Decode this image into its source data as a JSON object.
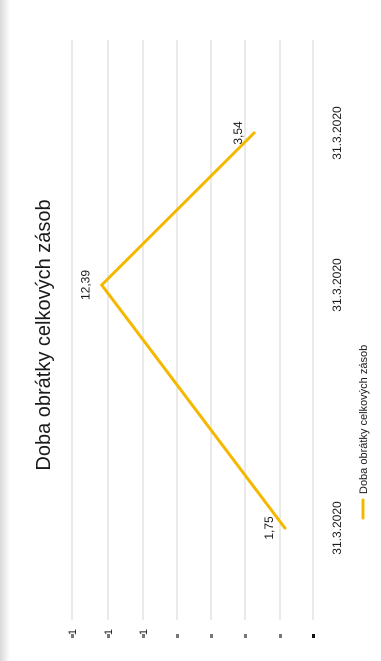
{
  "chart_data": {
    "type": "line",
    "title": "Doba obrátky celkových zásob",
    "categories": [
      "31.3.2020",
      "31.3.2020",
      "31.3.2020"
    ],
    "series": [
      {
        "name": "Doba obrátky celkových zásob",
        "values": [
          1.75,
          12.39,
          3.54
        ],
        "data_labels": [
          "1,75",
          "12,39",
          "3,54"
        ]
      }
    ],
    "y_tick_labels": [
      "1",
      "1",
      "1",
      "",
      "",
      "",
      "",
      ""
    ],
    "grid": true,
    "legend": "bottom",
    "orientation": "rotated-90-clockwise",
    "colors": {
      "series": "#f5b800",
      "grid": "#d6d6d6",
      "text": "#1a1a1a"
    }
  }
}
